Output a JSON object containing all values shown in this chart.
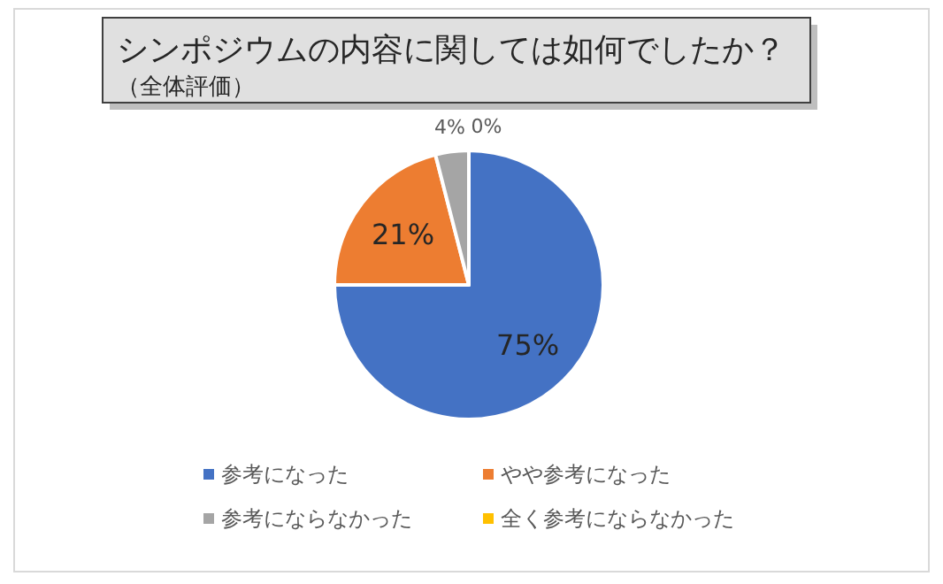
{
  "chart_data": {
    "type": "pie",
    "title": "シンポジウムの内容に関しては如何でしたか？",
    "subtitle": "（全体評価）",
    "categories": [
      "参考になった",
      "やや参考になった",
      "参考にならなかった",
      "全く参考にならなかった"
    ],
    "values": [
      75,
      21,
      4,
      0
    ],
    "colors": [
      "#4472c4",
      "#ed7d31",
      "#a5a5a5",
      "#ffc000"
    ],
    "value_labels": [
      "75%",
      "21%",
      "4%",
      "0%"
    ],
    "legend": "bottom"
  }
}
